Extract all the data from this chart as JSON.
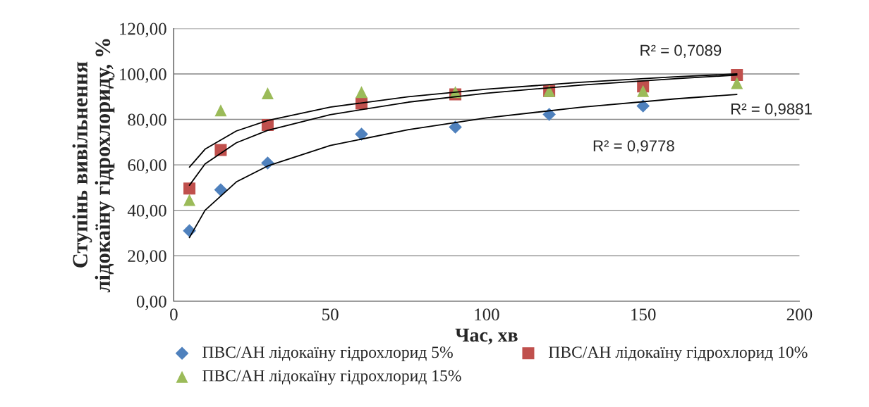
{
  "chart_data": {
    "type": "scatter",
    "xlabel": "Час, хв",
    "ylabel": "Ступінь вивільнення\nлідокаїну гідрохлориду, %",
    "x": [
      5,
      15,
      30,
      60,
      90,
      120,
      150,
      180
    ],
    "series": [
      {
        "name": "ПВС/АН лідокаїну гідрохлорид 5%",
        "color": "#4f81bd",
        "marker": "diamond",
        "values": [
          31,
          49,
          60.8,
          73.5,
          76.6,
          82.2,
          85.9,
          null
        ]
      },
      {
        "name": "ПВС/АН лідокаїну гідрохлорид 10%",
        "color": "#c0504d",
        "marker": "square",
        "values": [
          49.6,
          66.5,
          77.5,
          87,
          91,
          92.5,
          94.5,
          99.5
        ]
      },
      {
        "name": "ПВС/АН лідокаїну гідрохлорид 15%",
        "color": "#9bbb59",
        "marker": "triangle",
        "values": [
          44.5,
          84,
          91.5,
          92,
          92,
          92.5,
          92.5,
          96
        ]
      },
      {
        "type": "line",
        "color": "#000000",
        "marker": "none",
        "x": [
          5,
          10,
          20,
          30,
          50,
          75,
          100,
          130,
          160,
          180
        ],
        "values": [
          28,
          40,
          52.5,
          59.5,
          68.5,
          75.5,
          80.7,
          85.3,
          89,
          91
        ]
      },
      {
        "type": "line",
        "color": "#000000",
        "marker": "none",
        "x": [
          5,
          10,
          20,
          30,
          50,
          75,
          100,
          130,
          160,
          180
        ],
        "values": [
          51,
          60.4,
          69.7,
          75.2,
          82.1,
          87.6,
          91.5,
          95.1,
          97.9,
          99.5
        ]
      },
      {
        "type": "line",
        "color": "#000000",
        "marker": "none",
        "x": [
          5,
          10,
          20,
          30,
          50,
          75,
          100,
          130,
          160,
          180
        ],
        "values": [
          59,
          66.9,
          74.9,
          79.5,
          85.4,
          90,
          93.3,
          96.3,
          98.7,
          100
        ]
      }
    ],
    "annotations": [
      "R² = 0,7089",
      "R² = 0,9881",
      "R² = 0,9778"
    ],
    "xlim": [
      0,
      200
    ],
    "xticks": [
      0,
      50,
      100,
      150,
      200
    ],
    "ylim": [
      0,
      120
    ],
    "yticks": [
      {
        "value": 0,
        "label": "0,00"
      },
      {
        "value": 20,
        "label": "20,00"
      },
      {
        "value": 40,
        "label": "40,00"
      },
      {
        "value": 60,
        "label": "60,00"
      },
      {
        "value": 80,
        "label": "80,00"
      },
      {
        "value": 100,
        "label": "100,00"
      },
      {
        "value": 120,
        "label": "120,00"
      }
    ],
    "grid": "y",
    "legend": "bottom"
  }
}
